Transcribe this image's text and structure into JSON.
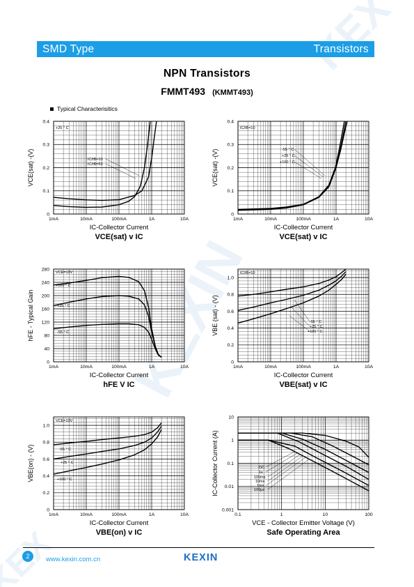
{
  "header": {
    "left": "SMD Type",
    "right": "Transistors"
  },
  "doc_title": "NPN  Transistors",
  "part_number": "FMMT493",
  "alt_part": "(KMMT493)",
  "section_label": "Typical   Characterisitics",
  "footer": {
    "page": "2",
    "website": "www.kexin.com.cn",
    "logo_text": "KEXIN"
  },
  "watermark_text": "KEXIN",
  "colors": {
    "accent": "#1b9ee6",
    "logo": "#1b6fc4",
    "watermark": "#dbe9f6"
  },
  "chart_data": [
    {
      "id": "c1",
      "type": "line",
      "x_scale": "log",
      "xlim": [
        0.001,
        10
      ],
      "xticks": [
        0.001,
        0.01,
        0.1,
        1,
        10
      ],
      "xtick_labels": [
        "1mA",
        "10mA",
        "100mA",
        "1A",
        "10A"
      ],
      "ylim": [
        0,
        0.4
      ],
      "yticks": [
        0,
        0.1,
        0.2,
        0.3,
        0.4
      ],
      "ytick_labels": [
        "0",
        "0.1",
        "0.2",
        "0.3",
        "0.4"
      ],
      "xlabel": "IC-Collector Current",
      "ylabel": "VCE(sat) -(V)",
      "title": "VCE(sat) v IC",
      "annotations": [
        "+25 ° C",
        "IC/IB=10",
        "IC/IB=50"
      ],
      "series": [
        {
          "x": [
            0.001,
            0.003,
            0.01,
            0.03,
            0.1,
            0.3,
            0.5,
            0.8,
            1,
            1.2,
            1.4
          ],
          "y": [
            0.072,
            0.066,
            0.061,
            0.059,
            0.062,
            0.08,
            0.1,
            0.16,
            0.24,
            0.33,
            0.4
          ]
        },
        {
          "x": [
            0.001,
            0.003,
            0.01,
            0.03,
            0.1,
            0.2,
            0.3,
            0.45,
            0.6,
            0.75,
            0.9
          ],
          "y": [
            0.037,
            0.032,
            0.029,
            0.03,
            0.04,
            0.055,
            0.075,
            0.12,
            0.2,
            0.3,
            0.4
          ]
        }
      ]
    },
    {
      "id": "c2",
      "type": "line",
      "x_scale": "log",
      "xlim": [
        0.001,
        10
      ],
      "xticks": [
        0.001,
        0.01,
        0.1,
        1,
        10
      ],
      "xtick_labels": [
        "1mA",
        "10mA",
        "100mA",
        "1A",
        "10A"
      ],
      "ylim": [
        0,
        0.4
      ],
      "yticks": [
        0,
        0.1,
        0.2,
        0.3,
        0.4
      ],
      "ytick_labels": [
        "0",
        "0.1",
        "0.2",
        "0.3",
        "0.4"
      ],
      "xlabel": "IC-Collector Current",
      "ylabel": "VCE(sat) -(V)",
      "title": "VCE(sat) v IC",
      "annotations": [
        "IC/IB=10",
        "-55 ° C",
        "+25 ° C",
        "+100 ° C"
      ],
      "series": [
        {
          "x": [
            0.001,
            0.003,
            0.01,
            0.03,
            0.1,
            0.3,
            0.6,
            1,
            1.4,
            1.8,
            2.2
          ],
          "y": [
            0.02,
            0.022,
            0.024,
            0.03,
            0.042,
            0.075,
            0.12,
            0.2,
            0.28,
            0.35,
            0.4
          ]
        },
        {
          "x": [
            0.001,
            0.003,
            0.01,
            0.03,
            0.1,
            0.3,
            0.6,
            1,
            1.35,
            1.7,
            2.0
          ],
          "y": [
            0.018,
            0.02,
            0.022,
            0.028,
            0.04,
            0.072,
            0.117,
            0.2,
            0.28,
            0.35,
            0.4
          ]
        },
        {
          "x": [
            0.001,
            0.003,
            0.01,
            0.03,
            0.1,
            0.3,
            0.6,
            0.95,
            1.25,
            1.55,
            1.8
          ],
          "y": [
            0.016,
            0.018,
            0.02,
            0.026,
            0.04,
            0.075,
            0.125,
            0.2,
            0.28,
            0.35,
            0.4
          ]
        }
      ]
    },
    {
      "id": "c3",
      "type": "line",
      "x_scale": "log",
      "xlim": [
        0.001,
        10
      ],
      "xticks": [
        0.001,
        0.01,
        0.1,
        1,
        10
      ],
      "xtick_labels": [
        "1mA",
        "10mA",
        "100mA",
        "1A",
        "10A"
      ],
      "ylim": [
        0,
        280
      ],
      "yticks": [
        0,
        40,
        80,
        120,
        160,
        200,
        240,
        280
      ],
      "ytick_labels": [
        "0",
        "40",
        "80",
        "120",
        "160",
        "200",
        "240",
        "280"
      ],
      "xlabel": "IC-Collector Current",
      "ylabel": "hFE - Typical Gain",
      "title": "hFE V IC",
      "annotations": [
        "VCE=10V",
        "+100 ° C",
        "+25 ° C",
        "-55 ° C"
      ],
      "series": [
        {
          "x": [
            0.001,
            0.003,
            0.01,
            0.03,
            0.1,
            0.2,
            0.4,
            0.6,
            0.8,
            1,
            1.3,
            1.6,
            2
          ],
          "y": [
            232,
            238,
            246,
            254,
            258,
            255,
            242,
            215,
            165,
            100,
            45,
            22,
            13
          ]
        },
        {
          "x": [
            0.001,
            0.003,
            0.01,
            0.03,
            0.1,
            0.2,
            0.4,
            0.6,
            0.8,
            1,
            1.3,
            1.6,
            2
          ],
          "y": [
            170,
            180,
            190,
            197,
            200,
            198,
            190,
            172,
            138,
            90,
            45,
            22,
            14
          ]
        },
        {
          "x": [
            0.001,
            0.003,
            0.01,
            0.03,
            0.1,
            0.2,
            0.4,
            0.6,
            0.8,
            1,
            1.3,
            1.6,
            2
          ],
          "y": [
            100,
            105,
            110,
            113,
            115,
            115,
            112,
            104,
            90,
            68,
            38,
            20,
            14
          ]
        }
      ]
    },
    {
      "id": "c4",
      "type": "line",
      "x_scale": "log",
      "xlim": [
        0.001,
        10
      ],
      "xticks": [
        0.001,
        0.01,
        0.1,
        1,
        10
      ],
      "xtick_labels": [
        "1mA",
        "10mA",
        "100mA",
        "1A",
        "10A"
      ],
      "ylim": [
        0,
        1.1
      ],
      "yticks": [
        0,
        0.2,
        0.4,
        0.6,
        0.8,
        1.0
      ],
      "ytick_labels": [
        "0",
        "0.2",
        "0.4",
        "0.6",
        "0.8",
        "1.0"
      ],
      "xlabel": "IC-Collector Current",
      "ylabel": "VBE (sat) - (V)",
      "title": "VBE(sat) v IC",
      "annotations": [
        "IC/IB=10",
        "-55 ° C",
        "+25 ° C",
        "+100 ° C"
      ],
      "series": [
        {
          "x": [
            0.001,
            0.003,
            0.01,
            0.03,
            0.1,
            0.3,
            0.6,
            1,
            1.5,
            2
          ],
          "y": [
            0.78,
            0.8,
            0.83,
            0.86,
            0.89,
            0.93,
            0.97,
            1.01,
            1.06,
            1.1
          ]
        },
        {
          "x": [
            0.001,
            0.003,
            0.01,
            0.03,
            0.1,
            0.3,
            0.6,
            1,
            1.5,
            2
          ],
          "y": [
            0.61,
            0.65,
            0.7,
            0.74,
            0.79,
            0.85,
            0.91,
            0.96,
            1.02,
            1.07
          ]
        },
        {
          "x": [
            0.001,
            0.003,
            0.01,
            0.03,
            0.1,
            0.3,
            0.6,
            1,
            1.5,
            2
          ],
          "y": [
            0.46,
            0.51,
            0.57,
            0.63,
            0.7,
            0.78,
            0.85,
            0.92,
            0.98,
            1.04
          ]
        }
      ]
    },
    {
      "id": "c5",
      "type": "line",
      "x_scale": "log",
      "xlim": [
        0.001,
        10
      ],
      "xticks": [
        0.001,
        0.01,
        0.1,
        1,
        10
      ],
      "xtick_labels": [
        "1mA",
        "10mA",
        "100mA",
        "1A",
        "10A"
      ],
      "ylim": [
        0,
        1.1
      ],
      "yticks": [
        0,
        0.2,
        0.4,
        0.6,
        0.8,
        1.0
      ],
      "ytick_labels": [
        "0",
        "0.2",
        "0.4",
        "0.6",
        "0.8",
        "1.0"
      ],
      "xlabel": "IC-Collector Current",
      "ylabel": "VBE(on) - (V)",
      "title": "VBE(on) v IC",
      "annotations": [
        "VCE=10V",
        "-55 ° C",
        "+25 ° C",
        "+100 ° C"
      ],
      "series": [
        {
          "x": [
            0.001,
            0.003,
            0.01,
            0.03,
            0.1,
            0.3,
            0.6,
            1,
            1.5,
            2
          ],
          "y": [
            0.77,
            0.79,
            0.81,
            0.83,
            0.85,
            0.87,
            0.89,
            0.92,
            0.97,
            1.03
          ]
        },
        {
          "x": [
            0.001,
            0.003,
            0.01,
            0.03,
            0.1,
            0.3,
            0.6,
            1,
            1.5,
            2
          ],
          "y": [
            0.6,
            0.63,
            0.66,
            0.69,
            0.72,
            0.76,
            0.8,
            0.85,
            0.92,
            0.99
          ]
        },
        {
          "x": [
            0.001,
            0.003,
            0.01,
            0.03,
            0.1,
            0.3,
            0.6,
            1,
            1.5,
            2
          ],
          "y": [
            0.42,
            0.46,
            0.5,
            0.54,
            0.59,
            0.65,
            0.71,
            0.78,
            0.86,
            0.95
          ]
        }
      ]
    },
    {
      "id": "c6",
      "type": "line",
      "x_scale": "log",
      "y_scale": "log",
      "xlim": [
        0.1,
        100
      ],
      "ylim": [
        0.001,
        10
      ],
      "xticks": [
        0.1,
        1,
        10,
        100
      ],
      "xtick_labels": [
        "0.1",
        "1",
        "10",
        "100"
      ],
      "yticks": [
        0.001,
        0.01,
        0.1,
        1,
        10
      ],
      "ytick_labels": [
        "0.001",
        "0.01",
        "0.1",
        "1",
        "10"
      ],
      "xlabel": "VCE - Collector Emitter Voltage (V)",
      "ylabel": "IC-Collector Current (A)",
      "title": "Safe Operating Area",
      "annotations": [
        "DC",
        "1s",
        "100ms",
        "10ms",
        "1ms",
        "100µs"
      ],
      "series": [
        {
          "x": [
            0.1,
            0.5,
            1.5,
            5,
            20,
            100
          ],
          "y": [
            1,
            1,
            0.42,
            0.13,
            0.033,
            0.0065
          ]
        },
        {
          "x": [
            0.1,
            0.5,
            2,
            6,
            25,
            100
          ],
          "y": [
            1,
            1,
            0.55,
            0.18,
            0.045,
            0.011
          ]
        },
        {
          "x": [
            0.1,
            0.8,
            2.5,
            8,
            30,
            100
          ],
          "y": [
            2,
            2,
            0.85,
            0.27,
            0.075,
            0.02
          ]
        },
        {
          "x": [
            0.1,
            1,
            3,
            10,
            40,
            100
          ],
          "y": [
            2,
            2,
            1.1,
            0.4,
            0.1,
            0.04
          ]
        },
        {
          "x": [
            0.1,
            1.6,
            5,
            15,
            50,
            100
          ],
          "y": [
            2,
            2,
            1.4,
            0.55,
            0.17,
            0.085
          ]
        },
        {
          "x": [
            0.1,
            3,
            10,
            30,
            60,
            100
          ],
          "y": [
            2,
            2,
            1.6,
            0.9,
            0.5,
            0.18
          ]
        }
      ]
    }
  ]
}
